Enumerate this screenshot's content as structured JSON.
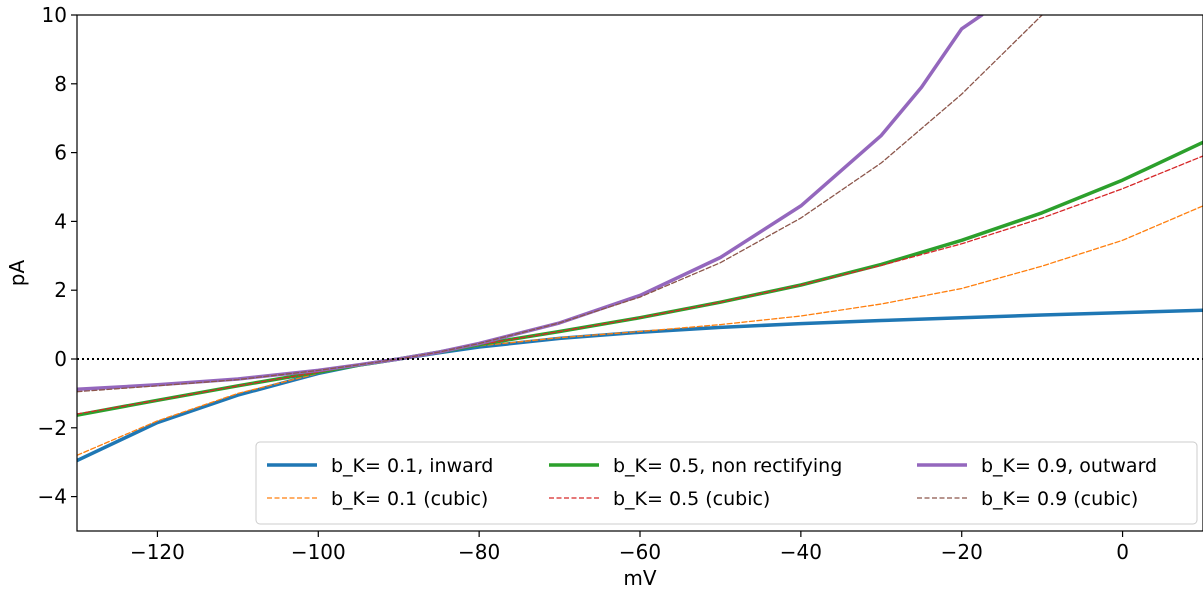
{
  "chart_data": {
    "type": "line",
    "xlabel": "mV",
    "ylabel": "pA",
    "xlim": [
      -130,
      10
    ],
    "ylim": [
      -5,
      10
    ],
    "x_ticks": [
      -120,
      -100,
      -80,
      -60,
      -40,
      -20,
      0
    ],
    "y_ticks": [
      -4,
      -2,
      0,
      2,
      4,
      6,
      8,
      10
    ],
    "x_tick_labels": [
      "−120",
      "−100",
      "−80",
      "−60",
      "−40",
      "−20",
      "0"
    ],
    "y_tick_labels": [
      "−4",
      "−2",
      "0",
      "2",
      "4",
      "6",
      "8",
      "10"
    ],
    "grid": false,
    "legend_position": "lower-right",
    "legend_columns": 3,
    "reference_line": {
      "y": 0,
      "style": "dotted",
      "color": "#000000"
    },
    "series": [
      {
        "name": "b_K= 0.1, inward",
        "color": "#1f77b4",
        "style": "solid",
        "x": [
          -130,
          -120,
          -110,
          -100,
          -95,
          -90,
          -85,
          -80,
          -70,
          -60,
          -50,
          -40,
          -30,
          -20,
          -10,
          0,
          10
        ],
        "y": [
          -2.95,
          -1.85,
          -1.05,
          -0.42,
          -0.18,
          0.0,
          0.18,
          0.35,
          0.6,
          0.78,
          0.92,
          1.03,
          1.12,
          1.2,
          1.28,
          1.35,
          1.42
        ]
      },
      {
        "name": "b_K= 0.1 (cubic)",
        "color": "#ff7f0e",
        "style": "dashed",
        "x": [
          -130,
          -120,
          -110,
          -100,
          -95,
          -90,
          -85,
          -80,
          -70,
          -60,
          -50,
          -40,
          -30,
          -20,
          -10,
          0,
          10
        ],
        "y": [
          -2.8,
          -1.8,
          -1.0,
          -0.42,
          -0.18,
          0.0,
          0.2,
          0.38,
          0.62,
          0.8,
          1.0,
          1.25,
          1.6,
          2.05,
          2.7,
          3.45,
          4.45
        ]
      },
      {
        "name": "b_K= 0.5, non rectifying",
        "color": "#2ca02c",
        "style": "solid",
        "x": [
          -130,
          -120,
          -110,
          -100,
          -95,
          -90,
          -85,
          -80,
          -70,
          -60,
          -50,
          -40,
          -30,
          -20,
          -10,
          0,
          10
        ],
        "y": [
          -1.63,
          -1.2,
          -0.78,
          -0.38,
          -0.18,
          0.0,
          0.2,
          0.42,
          0.8,
          1.2,
          1.65,
          2.15,
          2.75,
          3.45,
          4.25,
          5.2,
          6.3
        ]
      },
      {
        "name": "b_K= 0.5 (cubic)",
        "color": "#d62728",
        "style": "dashed",
        "x": [
          -130,
          -120,
          -110,
          -100,
          -95,
          -90,
          -85,
          -80,
          -70,
          -60,
          -50,
          -40,
          -30,
          -20,
          -10,
          0,
          10
        ],
        "y": [
          -1.6,
          -1.2,
          -0.78,
          -0.38,
          -0.18,
          0.0,
          0.2,
          0.42,
          0.8,
          1.2,
          1.65,
          2.15,
          2.72,
          3.35,
          4.1,
          4.95,
          5.9
        ]
      },
      {
        "name": "b_K= 0.9, outward",
        "color": "#9467bd",
        "style": "solid",
        "x": [
          -130,
          -120,
          -110,
          -100,
          -95,
          -90,
          -85,
          -80,
          -70,
          -60,
          -50,
          -40,
          -30,
          -25,
          -20,
          -17.5
        ],
        "y": [
          -0.88,
          -0.75,
          -0.58,
          -0.33,
          -0.17,
          0.0,
          0.2,
          0.45,
          1.05,
          1.85,
          2.95,
          4.45,
          6.5,
          7.9,
          9.6,
          10.0
        ]
      },
      {
        "name": "b_K= 0.9 (cubic)",
        "color": "#8c564b",
        "style": "dashed",
        "x": [
          -130,
          -120,
          -110,
          -100,
          -95,
          -90,
          -85,
          -80,
          -70,
          -60,
          -50,
          -40,
          -30,
          -20,
          -10
        ],
        "y": [
          -0.95,
          -0.78,
          -0.6,
          -0.33,
          -0.17,
          0.0,
          0.2,
          0.45,
          1.05,
          1.8,
          2.8,
          4.1,
          5.7,
          7.7,
          10.0
        ]
      }
    ]
  }
}
